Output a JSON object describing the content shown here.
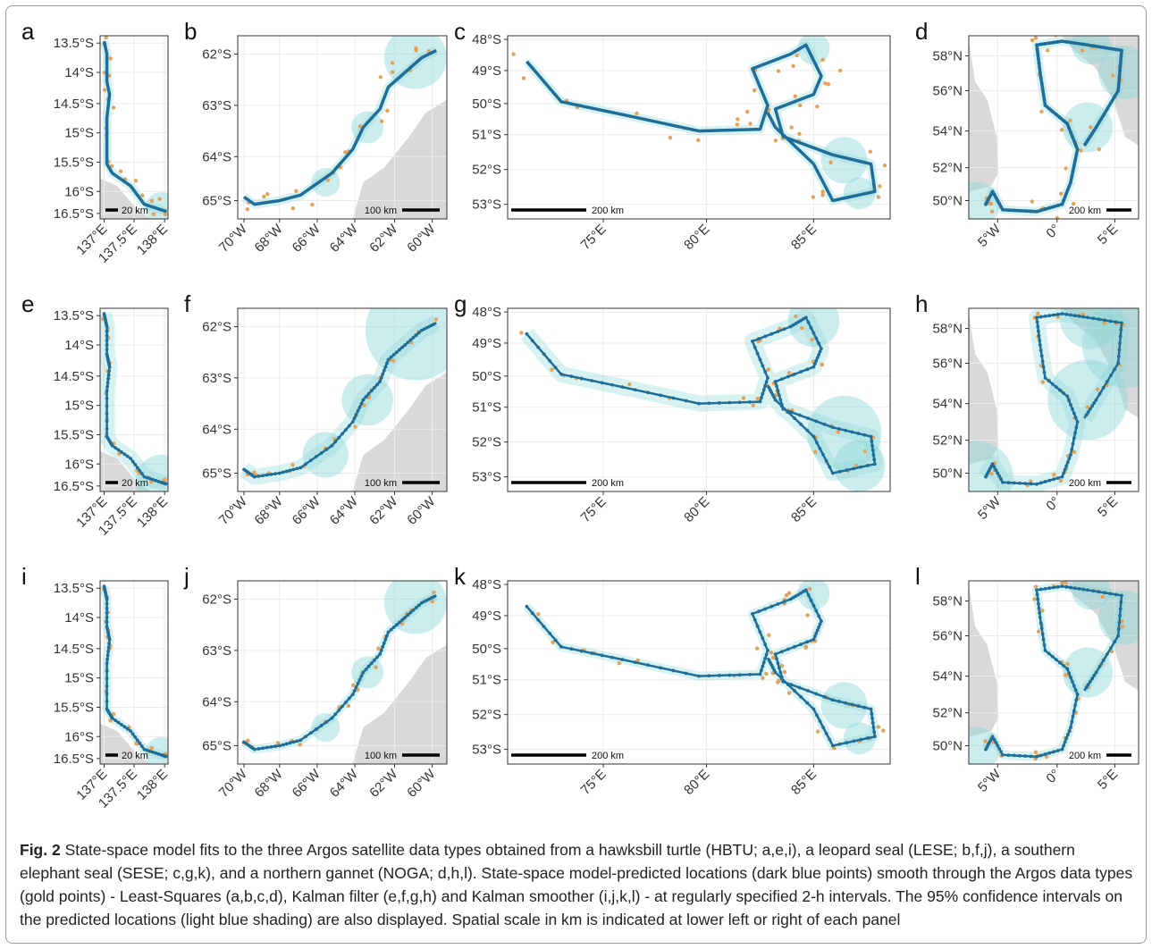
{
  "figure": {
    "label": "Fig. 2",
    "caption": "State-space model fits to the three Argos satellite data types obtained from a hawksbill turtle (HBTU; a,e,i), a leopard seal (LESE; b,f,j), a southern elephant seal (SESE; c,g,k), and a northern gannet (NOGA; d,h,l). State-space model-predicted locations (dark blue points) smooth through the Argos data types (gold points) - Least-Squares (a,b,c,d), Kalman filter (e,f,g,h) and Kalman smoother (i,j,k,l) - at regularly specified 2-h intervals. The 95% confidence intervals on the predicted locations (light blue shading) are also displayed. Spatial scale in km is indicated at lower left or right of each panel"
  },
  "colors": {
    "predicted": "#1f6e99",
    "observed": "#e3a25a",
    "ci": "#8fd6d8",
    "land": "#d9d9d9",
    "panel_border": "#333333",
    "grid": "#ebebeb"
  },
  "columns": [
    {
      "animal": "HBTU",
      "y_ticks": [
        "13.5°S",
        "14°S",
        "14.5°S",
        "15°S",
        "15.5°S",
        "16°S",
        "16.5°S"
      ],
      "x_ticks": [
        "137°E",
        "137.5°E",
        "138°E"
      ],
      "scale_label": "20 km"
    },
    {
      "animal": "LESE",
      "y_ticks": [
        "62°S",
        "63°S",
        "64°S",
        "65°S"
      ],
      "x_ticks": [
        "70°W",
        "68°W",
        "66°W",
        "64°W",
        "62°W",
        "60°W"
      ],
      "scale_label": "100 km"
    },
    {
      "animal": "SESE",
      "y_ticks": [
        "48°S",
        "49°S",
        "50°S",
        "51°S",
        "52°S",
        "53°S"
      ],
      "x_ticks": [
        "75°E",
        "80°E",
        "85°E"
      ],
      "scale_label": "200 km"
    },
    {
      "animal": "NOGA",
      "y_ticks": [
        "58°N",
        "56°N",
        "54°N",
        "52°N",
        "50°N"
      ],
      "x_ticks": [
        "5°W",
        "0°",
        "5°E"
      ],
      "scale_label": "200 km"
    }
  ],
  "rows": [
    {
      "method": "Least-Squares",
      "letters": [
        "a",
        "b",
        "c",
        "d"
      ]
    },
    {
      "method": "Kalman filter",
      "letters": [
        "e",
        "f",
        "g",
        "h"
      ]
    },
    {
      "method": "Kalman smoother",
      "letters": [
        "i",
        "j",
        "k",
        "l"
      ]
    }
  ]
}
